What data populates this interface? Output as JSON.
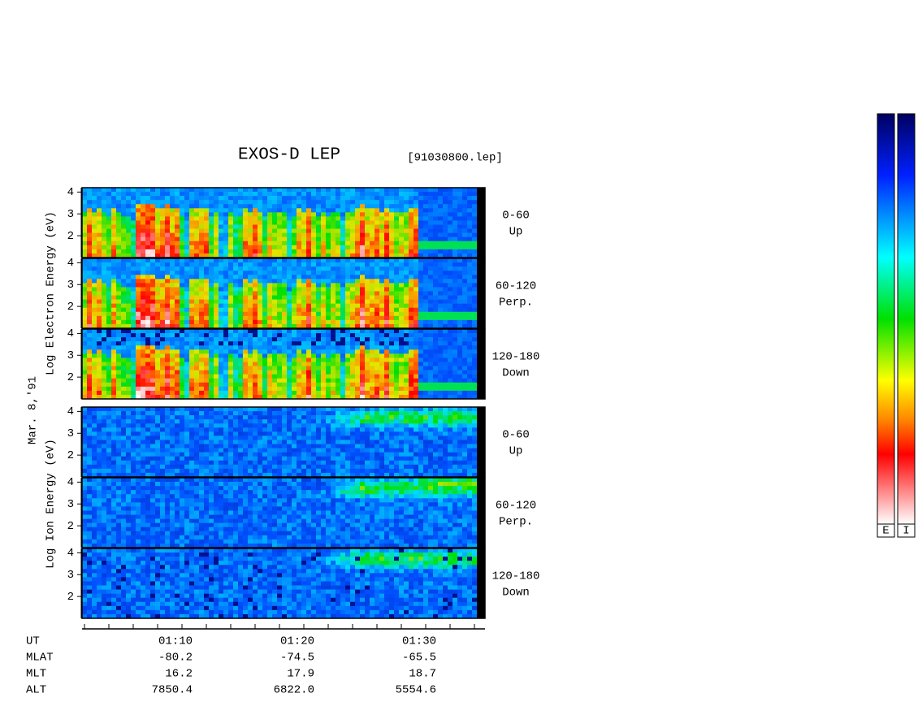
{
  "header": {
    "title": "EXOS-D LEP",
    "file": "[91030800.lep]"
  },
  "side_labels": {
    "electron": "Log Electron Energy (eV)",
    "date": "Mar. 8,'91",
    "ion": "Log Ion Energy (eV)"
  },
  "panels": [
    {
      "group": "electron",
      "lines": [
        "0-60",
        "Up"
      ]
    },
    {
      "group": "electron",
      "lines": [
        "60-120",
        "Perp."
      ]
    },
    {
      "group": "electron",
      "lines": [
        "120-180",
        "Down"
      ]
    },
    {
      "group": "ion",
      "lines": [
        "0-60",
        "Up"
      ]
    },
    {
      "group": "ion",
      "lines": [
        "60-120",
        "Perp."
      ]
    },
    {
      "group": "ion",
      "lines": [
        "120-180",
        "Down"
      ]
    }
  ],
  "energy_axis": {
    "ylim": [
      1,
      4.2
    ],
    "yticks": [
      2,
      3,
      4
    ]
  },
  "time_table": {
    "rows": [
      {
        "label": "UT",
        "values": [
          "01:10",
          "01:20",
          "01:30"
        ]
      },
      {
        "label": "MLAT",
        "values": [
          "-80.2",
          "-74.5",
          "-65.5"
        ]
      },
      {
        "label": "MLT",
        "values": [
          "16.2",
          "17.9",
          "18.7"
        ]
      },
      {
        "label": "ALT",
        "values": [
          "7850.4",
          "6822.0",
          "5554.6"
        ]
      }
    ]
  },
  "colorbar": {
    "labels": [
      "E",
      "I"
    ]
  }
}
